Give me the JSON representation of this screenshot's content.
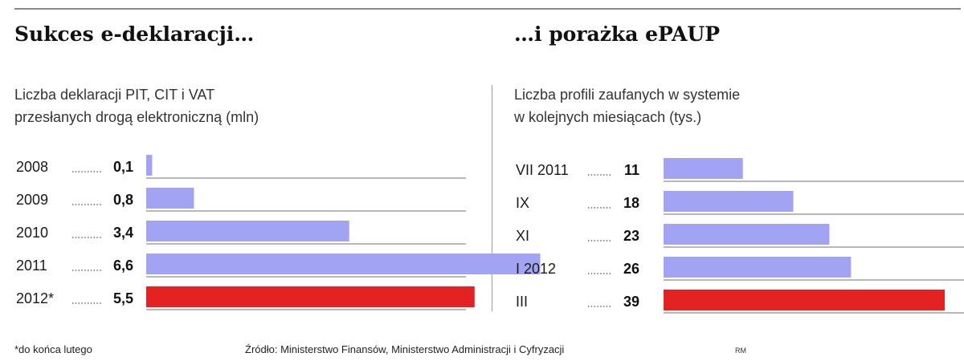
{
  "header": {
    "left_title": "Sukces e-deklaracji…",
    "right_title": "…i porażka ePAUP"
  },
  "chart_data": [
    {
      "type": "bar",
      "orientation": "horizontal",
      "subtitle_lines": [
        "Liczba deklaracji PIT, CIT i VAT",
        "przesłanych drogą elektroniczną (mln)"
      ],
      "categories": [
        "2008",
        "2009",
        "2010",
        "2011",
        "2012*"
      ],
      "values": [
        0.1,
        0.8,
        3.4,
        6.6,
        5.5
      ],
      "value_labels": [
        "0,1",
        "0,8",
        "3,4",
        "6,6",
        "5,5"
      ],
      "bar_colors": [
        "#a3a3f4",
        "#a3a3f4",
        "#a3a3f4",
        "#a3a3f4",
        "#e42222"
      ],
      "xlim": [
        0,
        7.4
      ],
      "grid": false
    },
    {
      "type": "bar",
      "orientation": "horizontal",
      "subtitle_lines": [
        "Liczba profili zaufanych w systemie",
        "w kolejnych miesiącach (tys.)"
      ],
      "categories": [
        "VII 2011",
        "IX",
        "XI",
        "I 2012",
        "III"
      ],
      "values": [
        11,
        18,
        23,
        26,
        39
      ],
      "value_labels": [
        "11",
        "18",
        "23",
        "26",
        "39"
      ],
      "bar_colors": [
        "#a3a3f4",
        "#a3a3f4",
        "#a3a3f4",
        "#a3a3f4",
        "#e42222"
      ],
      "xlim": [
        0,
        41
      ],
      "grid": false
    }
  ],
  "footer": {
    "note": "*do końca lutego",
    "source": "Źródło: Ministerstwo Finansów, Ministerstwo Administracji i Cyfryzacji",
    "credit": "RM"
  }
}
